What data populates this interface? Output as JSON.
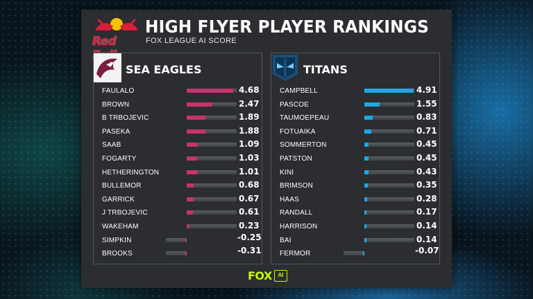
{
  "header": {
    "brand": "Red Bull",
    "title": "HIGH FLYER PLAYER RANKINGS",
    "subtitle": "FOX LEAGUE AI SCORE"
  },
  "colors": {
    "sea_eagles_bar": "#c8336e",
    "titans_bar": "#1ca9e6",
    "panel_bg": "#2b2d30",
    "footer_accent": "#c6ff00"
  },
  "footer": {
    "fox": "FOX",
    "ai": "AI"
  },
  "scale": {
    "max": 5,
    "min": -0.5
  },
  "teams": [
    {
      "name": "SEA EAGLES",
      "logo_icon": "sea-eagles-logo",
      "players": [
        {
          "name": "FAULALO",
          "score": "4.68",
          "value": 4.68
        },
        {
          "name": "BROWN",
          "score": "2.47",
          "value": 2.47
        },
        {
          "name": "B TRBOJEVIC",
          "score": "1.89",
          "value": 1.89
        },
        {
          "name": "PASEKA",
          "score": "1.88",
          "value": 1.88
        },
        {
          "name": "SAAB",
          "score": "1.09",
          "value": 1.09
        },
        {
          "name": "FOGARTY",
          "score": "1.03",
          "value": 1.03
        },
        {
          "name": "HETHERINGTON",
          "score": "1.01",
          "value": 1.01
        },
        {
          "name": "BULLEMOR",
          "score": "0.68",
          "value": 0.68
        },
        {
          "name": "GARRICK",
          "score": "0.67",
          "value": 0.67
        },
        {
          "name": "J TRBOJEVIC",
          "score": "0.61",
          "value": 0.61
        },
        {
          "name": "WAKEHAM",
          "score": "0.23",
          "value": 0.23
        },
        {
          "name": "SIMPKIN",
          "score": "-0.25",
          "value": -0.25
        },
        {
          "name": "BROOKS",
          "score": "-0.31",
          "value": -0.31
        }
      ]
    },
    {
      "name": "TITANS",
      "logo_icon": "titans-logo",
      "players": [
        {
          "name": "CAMPBELL",
          "score": "4.91",
          "value": 4.91
        },
        {
          "name": "PASCOE",
          "score": "1.55",
          "value": 1.55
        },
        {
          "name": "TAUMOEPEAU",
          "score": "0.83",
          "value": 0.83
        },
        {
          "name": "FOTUAIKA",
          "score": "0.71",
          "value": 0.71
        },
        {
          "name": "SOMMERTON",
          "score": "0.45",
          "value": 0.45
        },
        {
          "name": "PATSTON",
          "score": "0.45",
          "value": 0.45
        },
        {
          "name": "KINI",
          "score": "0.43",
          "value": 0.43
        },
        {
          "name": "BRIMSON",
          "score": "0.35",
          "value": 0.35
        },
        {
          "name": "HAAS",
          "score": "0.28",
          "value": 0.28
        },
        {
          "name": "RANDALL",
          "score": "0.17",
          "value": 0.17
        },
        {
          "name": "HARRISON",
          "score": "0.14",
          "value": 0.14
        },
        {
          "name": "BAI",
          "score": "0.14",
          "value": 0.14
        },
        {
          "name": "FERMOR",
          "score": "-0.07",
          "value": -0.07
        }
      ]
    }
  ]
}
